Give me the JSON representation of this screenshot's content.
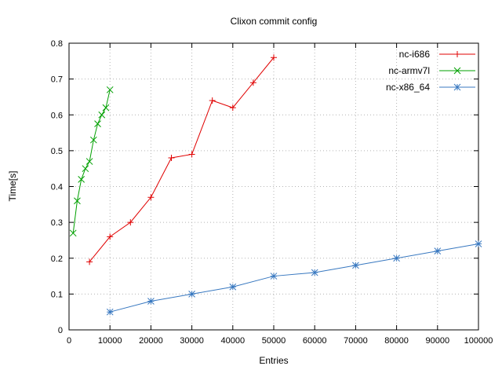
{
  "chart_data": {
    "type": "line",
    "title": "Clixon commit config",
    "xlabel": "Entries",
    "ylabel": "Time[s]",
    "xlim": [
      0,
      100000
    ],
    "ylim": [
      0,
      0.8
    ],
    "xticks": [
      0,
      10000,
      20000,
      30000,
      40000,
      50000,
      60000,
      70000,
      80000,
      90000,
      100000
    ],
    "yticks": [
      0,
      0.1,
      0.2,
      0.3,
      0.4,
      0.5,
      0.6,
      0.7,
      0.8
    ],
    "grid": true,
    "grid_style": "dotted",
    "legend_position": "top-right-inside",
    "colors": {
      "border": "#000000",
      "grid": "#b4b4b4",
      "text": "#000000"
    },
    "series": [
      {
        "name": "nc-i686",
        "color": "#e00000",
        "marker": "plus",
        "points": [
          [
            5000,
            0.19
          ],
          [
            10000,
            0.26
          ],
          [
            15000,
            0.3
          ],
          [
            20000,
            0.37
          ],
          [
            25000,
            0.48
          ],
          [
            30000,
            0.49
          ],
          [
            35000,
            0.64
          ],
          [
            40000,
            0.62
          ],
          [
            45000,
            0.69
          ],
          [
            50000,
            0.76
          ]
        ]
      },
      {
        "name": "nc-armv7l",
        "color": "#00a000",
        "marker": "x",
        "points": [
          [
            1000,
            0.27
          ],
          [
            2000,
            0.36
          ],
          [
            3000,
            0.42
          ],
          [
            4000,
            0.45
          ],
          [
            5000,
            0.47
          ],
          [
            6000,
            0.53
          ],
          [
            7000,
            0.575
          ],
          [
            8000,
            0.6
          ],
          [
            9000,
            0.62
          ],
          [
            10000,
            0.67
          ]
        ]
      },
      {
        "name": "nc-x86_64",
        "color": "#3878c0",
        "marker": "asterisk",
        "points": [
          [
            10000,
            0.05
          ],
          [
            20000,
            0.08
          ],
          [
            30000,
            0.1
          ],
          [
            40000,
            0.12
          ],
          [
            50000,
            0.15
          ],
          [
            60000,
            0.16
          ],
          [
            70000,
            0.18
          ],
          [
            80000,
            0.2
          ],
          [
            90000,
            0.22
          ],
          [
            100000,
            0.24
          ]
        ]
      }
    ]
  }
}
